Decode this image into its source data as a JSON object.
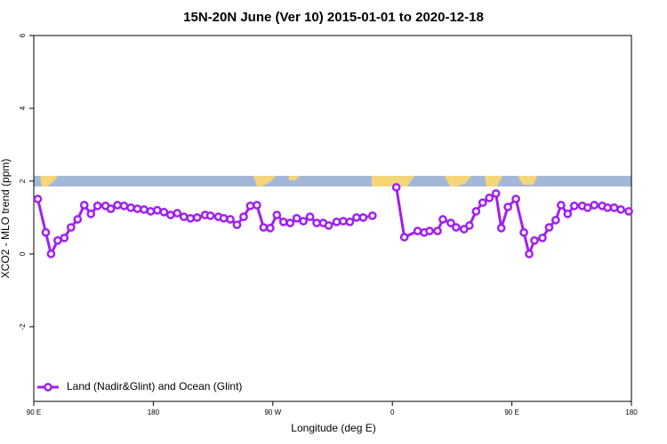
{
  "chart_data": {
    "type": "line",
    "title": "15N-20N June (Ver 10)   2015-01-01 to 2020-12-18",
    "xlabel": "Longitude (deg E)",
    "ylabel": "XCO2 - MLO trend (ppm)",
    "xlim": [
      90,
      540
    ],
    "ylim": [
      -4.05,
      6
    ],
    "xticks": [
      {
        "value": 90,
        "label": "90 E"
      },
      180,
      {
        "value": 270,
        "label": "90 W"
      },
      {
        "value": 360,
        "label": "0"
      },
      {
        "value": 450,
        "label": "90 E"
      },
      {
        "value": 540,
        "label": "180"
      }
    ],
    "yticks": [
      -2,
      0,
      2,
      4,
      6
    ],
    "legend": "bottom-left",
    "series": [
      {
        "name": "Land (Nadir&Glint) and Ocean (Glint)",
        "color": "#a020f0",
        "x": [
          93,
          99,
          103,
          108,
          113,
          118,
          123,
          128,
          133,
          138,
          144,
          148,
          153,
          158,
          163,
          168,
          173,
          178,
          183,
          188,
          193,
          198,
          203,
          208,
          213,
          219,
          223,
          229,
          233,
          238,
          243,
          248,
          253,
          258,
          263,
          268,
          273,
          278,
          283,
          288,
          293,
          298,
          303,
          308,
          312,
          318,
          323,
          328,
          333,
          338,
          345,
          355,
          363,
          369,
          379,
          384,
          388,
          394,
          398,
          404,
          408,
          414,
          418,
          423,
          428,
          433,
          438,
          442,
          447,
          453,
          459,
          463,
          467,
          473,
          478,
          483,
          487,
          492,
          497,
          503,
          507,
          512,
          518,
          522,
          527,
          532,
          538
        ],
        "values": [
          1.51,
          0.59,
          0.0,
          0.37,
          0.44,
          0.73,
          0.95,
          1.34,
          1.1,
          1.32,
          1.32,
          1.24,
          1.34,
          1.32,
          1.27,
          1.24,
          1.22,
          1.17,
          1.2,
          1.15,
          1.07,
          1.12,
          1.02,
          0.98,
          1.0,
          1.07,
          1.05,
          1.02,
          0.98,
          0.95,
          0.8,
          1.02,
          1.32,
          1.34,
          0.73,
          0.71,
          1.07,
          0.88,
          0.85,
          0.98,
          0.9,
          1.02,
          0.85,
          0.85,
          0.78,
          0.88,
          0.9,
          0.88,
          1.0,
          1.0,
          1.05,
          null,
          1.83,
          0.46,
          0.63,
          0.59,
          0.63,
          0.63,
          0.95,
          0.85,
          0.73,
          0.68,
          0.78,
          1.17,
          1.41,
          1.54,
          1.66,
          0.71,
          1.29,
          1.51,
          0.59,
          0.0,
          0.37,
          0.44,
          0.73,
          0.93,
          1.34,
          1.1,
          1.32,
          1.32,
          1.27,
          1.34,
          1.32,
          1.27,
          1.27,
          1.22,
          1.17
        ]
      }
    ]
  }
}
